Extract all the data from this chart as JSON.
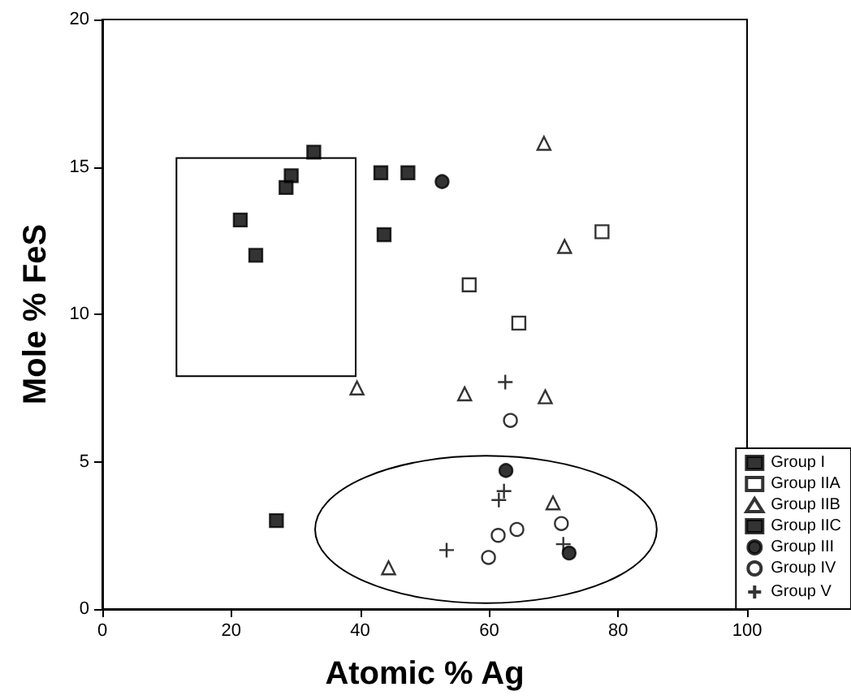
{
  "chart_data": {
    "type": "scatter",
    "xlabel": "Atomic % Ag",
    "ylabel": "Mole % FeS",
    "xlim": [
      0,
      100
    ],
    "xticks": [
      0,
      20,
      40,
      60,
      80,
      100
    ],
    "ylim": [
      0,
      20
    ],
    "yticks": [
      0,
      5,
      10,
      15,
      20
    ],
    "grid": false,
    "legend": "bottom right",
    "series": [
      {
        "name": "Group I",
        "color": "#000000",
        "marker": "square",
        "x": [
          32.8,
          29.3,
          28.5,
          21.4,
          23.8,
          43.2,
          47.4,
          43.7
        ],
        "values": [
          15.5,
          14.7,
          14.3,
          13.2,
          12.0,
          14.8,
          14.8,
          12.7
        ]
      },
      {
        "name": "Group IIA",
        "color": "#ffffff",
        "marker": "square",
        "x": [
          56.9,
          77.5,
          64.6
        ],
        "values": [
          11.0,
          12.8,
          9.7
        ]
      },
      {
        "name": "Group IIB",
        "color": "#ffffff",
        "marker": "triangle",
        "x": [
          68.5,
          71.7,
          39.5,
          56.2,
          68.7,
          69.9,
          44.4
        ],
        "values": [
          15.8,
          12.3,
          7.5,
          7.3,
          7.2,
          3.6,
          1.4
        ]
      },
      {
        "name": "Group IIC",
        "color": "#000000",
        "marker": "square",
        "x": [
          27
        ],
        "values": [
          3.0
        ]
      },
      {
        "name": "Group III",
        "color": "#000000",
        "marker": "circle",
        "x": [
          52.7,
          62.6,
          72.4
        ],
        "values": [
          14.5,
          4.7,
          1.9
        ]
      },
      {
        "name": "Group IV",
        "color": "#ffffff",
        "marker": "circle",
        "x": [
          63.3,
          61.4,
          64.3,
          71.2,
          59.9
        ],
        "values": [
          6.4,
          2.5,
          2.7,
          2.9,
          1.75
        ]
      },
      {
        "name": "Group V",
        "color": "#000000",
        "marker": "cross",
        "x": [
          62.5,
          61.5,
          62.3,
          53.4,
          71.5
        ],
        "values": [
          7.7,
          3.7,
          4.0,
          2.0,
          2.2
        ]
      }
    ]
  }
}
